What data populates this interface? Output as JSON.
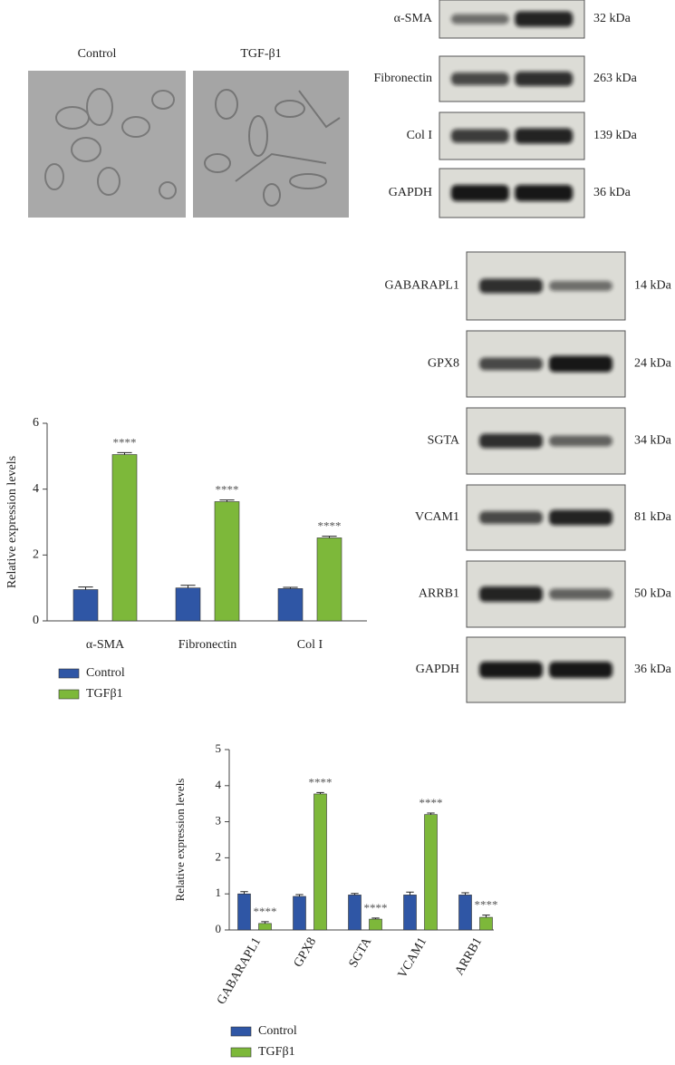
{
  "micrographs": {
    "labels": [
      "Control",
      "TGF-β1"
    ]
  },
  "blots_top": {
    "rows": [
      {
        "label": "α-SMA",
        "size": "32 kDa"
      },
      {
        "label": "Fibronectin",
        "size": "263 kDa"
      },
      {
        "label": "Col I",
        "size": "139 kDa"
      },
      {
        "label": "GAPDH",
        "size": "36 kDa"
      }
    ]
  },
  "blots_bottom": {
    "rows": [
      {
        "label": "GABARAPL1",
        "size": "14 kDa"
      },
      {
        "label": "GPX8",
        "size": "24 kDa"
      },
      {
        "label": "SGTA",
        "size": "34 kDa"
      },
      {
        "label": "VCAM1",
        "size": "81 kDa"
      },
      {
        "label": "ARRB1",
        "size": "50 kDa"
      },
      {
        "label": "GAPDH",
        "size": "36 kDa"
      }
    ]
  },
  "chart_data": [
    {
      "type": "bar",
      "y_label": "Relative expression levels",
      "categories": [
        "α-SMA",
        "Fibronectin",
        "Col I"
      ],
      "series": [
        {
          "name": "Control",
          "color": "#2f56a5",
          "values": [
            0.95,
            1.0,
            0.98
          ],
          "errors": [
            0.08,
            0.08,
            0.04
          ]
        },
        {
          "name": "TGFβ1",
          "color": "#7db83a",
          "values": [
            5.05,
            3.62,
            2.52
          ],
          "errors": [
            0.06,
            0.05,
            0.05
          ],
          "significance": [
            "****",
            "****",
            "****"
          ]
        }
      ],
      "ylim": [
        0,
        6
      ],
      "yticks": [
        0,
        2,
        4,
        6
      ]
    },
    {
      "type": "bar",
      "y_label": "Relative expression levels",
      "categories": [
        "GABARAPL1",
        "GPX8",
        "SGTA",
        "VCAM1",
        "ARRB1"
      ],
      "series": [
        {
          "name": "Control",
          "color": "#2f56a5",
          "values": [
            1.0,
            0.93,
            0.97,
            0.97,
            0.97
          ],
          "errors": [
            0.06,
            0.05,
            0.04,
            0.08,
            0.06
          ]
        },
        {
          "name": "TGFβ1",
          "color": "#7db83a",
          "values": [
            0.18,
            3.77,
            0.3,
            3.2,
            0.35
          ],
          "errors": [
            0.05,
            0.04,
            0.03,
            0.04,
            0.06
          ],
          "significance": [
            "****",
            "****",
            "****",
            "****",
            "****"
          ]
        }
      ],
      "ylim": [
        0,
        5
      ],
      "yticks": [
        0,
        1,
        2,
        3,
        4,
        5
      ]
    }
  ]
}
